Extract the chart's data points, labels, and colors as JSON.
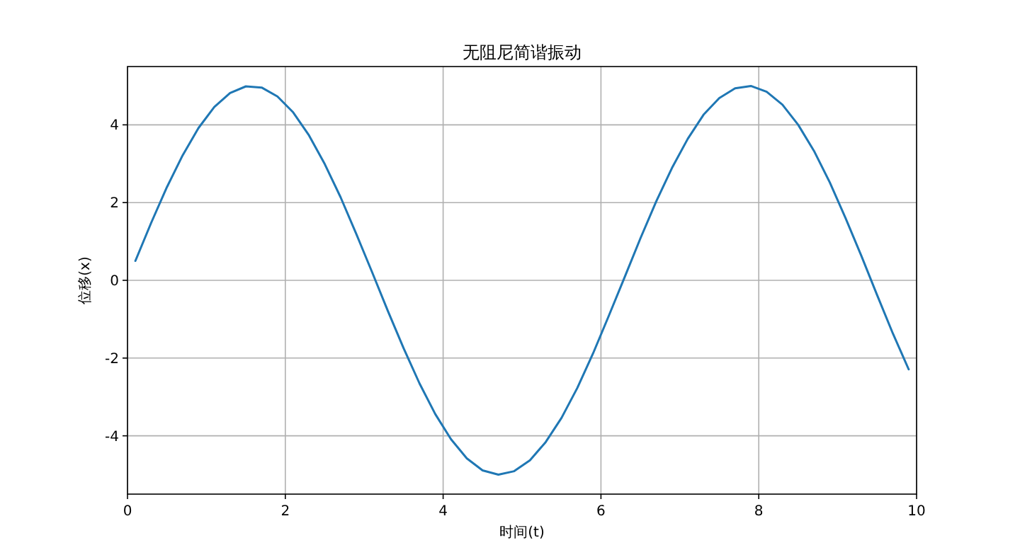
{
  "chart_data": {
    "type": "line",
    "title": "无阻尼简谐振动",
    "xlabel": "时间(t)",
    "ylabel": "位移(x)",
    "x": [
      0.1,
      0.3,
      0.5,
      0.7,
      0.9,
      1.1,
      1.3,
      1.5,
      1.7,
      1.9,
      2.1,
      2.3,
      2.5,
      2.7,
      2.9,
      3.1,
      3.3,
      3.5,
      3.7,
      3.9,
      4.1,
      4.3,
      4.5,
      4.7,
      4.9,
      5.1,
      5.3,
      5.5,
      5.7,
      5.9,
      6.1,
      6.3,
      6.5,
      6.7,
      6.9,
      7.1,
      7.3,
      7.5,
      7.7,
      7.9,
      8.1,
      8.3,
      8.5,
      8.7,
      8.9,
      9.1,
      9.3,
      9.5,
      9.7,
      9.9
    ],
    "series": [
      {
        "color": "#1f77b4",
        "values": [
          0.5,
          1.48,
          2.4,
          3.22,
          3.92,
          4.46,
          4.82,
          4.99,
          4.96,
          4.73,
          4.32,
          3.73,
          2.99,
          2.14,
          1.19,
          0.21,
          -0.79,
          -1.75,
          -2.65,
          -3.44,
          -4.09,
          -4.58,
          -4.89,
          -5.0,
          -4.91,
          -4.63,
          -4.16,
          -3.54,
          -2.77,
          -1.88,
          -0.91,
          0.08,
          1.08,
          2.03,
          2.89,
          3.64,
          4.26,
          4.69,
          4.94,
          5.0,
          4.85,
          4.52,
          4.0,
          3.33,
          2.52,
          1.6,
          0.63,
          -0.38,
          -1.37,
          -2.29
        ]
      }
    ],
    "xlim": [
      0,
      10
    ],
    "ylim": [
      -5.5,
      5.5
    ],
    "xticks": [
      0,
      2,
      4,
      6,
      8,
      10
    ],
    "yticks": [
      -4,
      -2,
      0,
      2,
      4
    ],
    "grid": true,
    "marker": "none",
    "line_style": "solid"
  }
}
